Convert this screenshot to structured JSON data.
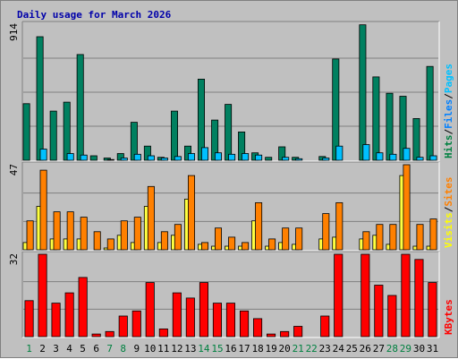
{
  "chart_data": {
    "type": "bar",
    "title": "Daily usage for March 2026",
    "days": [
      "1",
      "2",
      "3",
      "4",
      "5",
      "6",
      "7",
      "8",
      "9",
      "10",
      "11",
      "12",
      "13",
      "14",
      "15",
      "16",
      "17",
      "18",
      "19",
      "20",
      "21",
      "22",
      "23",
      "24",
      "25",
      "26",
      "27",
      "28",
      "29",
      "30",
      "31"
    ],
    "weekend_days": [
      "1",
      "7",
      "8",
      "14",
      "15",
      "21",
      "22",
      "28",
      "29"
    ],
    "panels": [
      {
        "id": "hits",
        "ymax_label": "914",
        "ymax": 914,
        "labels": [
          {
            "text": "Hits",
            "color": "#008040"
          },
          {
            "text": "/",
            "color": "#000000"
          },
          {
            "text": "Files",
            "color": "#0080ff"
          },
          {
            "text": "/",
            "color": "#000000"
          },
          {
            "text": "Pages",
            "color": "#00c0ff"
          }
        ],
        "series": [
          {
            "name": "Hits",
            "color": "#008060",
            "values": [
              380,
              830,
              330,
              390,
              710,
              30,
              15,
              45,
              255,
              95,
              20,
              330,
              95,
              545,
              270,
              375,
              190,
              50,
              20,
              90,
              20,
              0,
              25,
              680,
              0,
              910,
              560,
              450,
              430,
              280,
              630
            ]
          },
          {
            "name": "Pages",
            "color": "#00c0ff",
            "values": [
              0,
              75,
              0,
              45,
              35,
              0,
              5,
              15,
              40,
              30,
              15,
              25,
              45,
              85,
              50,
              40,
              45,
              35,
              0,
              20,
              10,
              0,
              15,
              95,
              0,
              105,
              50,
              40,
              80,
              20,
              30
            ]
          }
        ]
      },
      {
        "id": "visits",
        "ymax_label": "47",
        "ymax": 47,
        "labels": [
          {
            "text": "Visits",
            "color": "#ffff00"
          },
          {
            "text": "/",
            "color": "#000000"
          },
          {
            "text": "Sites",
            "color": "#ff8000"
          }
        ],
        "series": [
          {
            "name": "Visits",
            "color": "#ffff40",
            "values": [
              4,
              24,
              6,
              6,
              6,
              0,
              1,
              8,
              4,
              24,
              4,
              8,
              28,
              3,
              2,
              2,
              2,
              16,
              2,
              4,
              3,
              0,
              6,
              7,
              0,
              6,
              8,
              3,
              41,
              2,
              2
            ]
          },
          {
            "name": "Sites",
            "color": "#ff8000",
            "values": [
              16,
              44,
              21,
              21,
              18,
              10,
              6,
              16,
              18,
              35,
              10,
              14,
              41,
              4,
              12,
              7,
              4,
              26,
              6,
              12,
              12,
              0,
              20,
              26,
              0,
              10,
              14,
              14,
              47,
              14,
              17
            ]
          }
        ]
      },
      {
        "id": "kbytes",
        "ymax_label": "32",
        "ymax": 32,
        "labels": [
          {
            "text": "KBytes",
            "color": "#ff0000"
          }
        ],
        "series": [
          {
            "name": "KBytes",
            "color": "#ff0000",
            "values": [
              14,
              32,
              13,
              17,
              23,
              1,
              2,
              8,
              10,
              21,
              3,
              17,
              15,
              21,
              13,
              13,
              10,
              7,
              1,
              2,
              4,
              0,
              8,
              32,
              0,
              32,
              20,
              16,
              32,
              30,
              21
            ]
          }
        ]
      }
    ]
  }
}
